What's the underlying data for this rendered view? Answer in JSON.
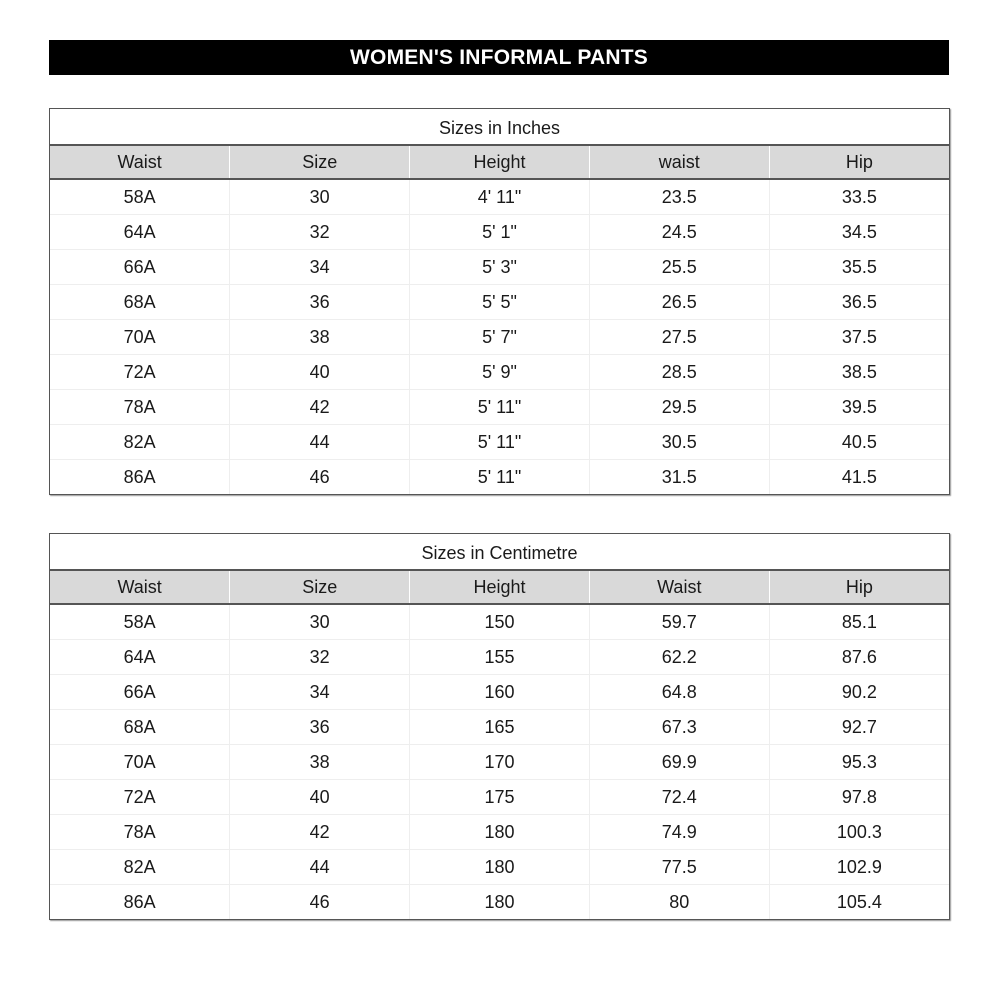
{
  "title": "WOMEN'S INFORMAL PANTS",
  "tables": [
    {
      "caption": "Sizes in Inches",
      "headers": [
        "Waist",
        "Size",
        "Height",
        "waist",
        "Hip"
      ],
      "rows": [
        [
          "58A",
          "30",
          "4' 11\"",
          "23.5",
          "33.5"
        ],
        [
          "64A",
          "32",
          "5' 1\"",
          "24.5",
          "34.5"
        ],
        [
          "66A",
          "34",
          "5' 3\"",
          "25.5",
          "35.5"
        ],
        [
          "68A",
          "36",
          "5' 5\"",
          "26.5",
          "36.5"
        ],
        [
          "70A",
          "38",
          "5' 7\"",
          "27.5",
          "37.5"
        ],
        [
          "72A",
          "40",
          "5' 9\"",
          "28.5",
          "38.5"
        ],
        [
          "78A",
          "42",
          "5' 11\"",
          "29.5",
          "39.5"
        ],
        [
          "82A",
          "44",
          "5' 11\"",
          "30.5",
          "40.5"
        ],
        [
          "86A",
          "46",
          "5' 11\"",
          "31.5",
          "41.5"
        ]
      ]
    },
    {
      "caption": "Sizes in Centimetre",
      "headers": [
        "Waist",
        "Size",
        "Height",
        "Waist",
        "Hip"
      ],
      "rows": [
        [
          "58A",
          "30",
          "150",
          "59.7",
          "85.1"
        ],
        [
          "64A",
          "32",
          "155",
          "62.2",
          "87.6"
        ],
        [
          "66A",
          "34",
          "160",
          "64.8",
          "90.2"
        ],
        [
          "68A",
          "36",
          "165",
          "67.3",
          "92.7"
        ],
        [
          "70A",
          "38",
          "170",
          "69.9",
          "95.3"
        ],
        [
          "72A",
          "40",
          "175",
          "72.4",
          "97.8"
        ],
        [
          "78A",
          "42",
          "180",
          "74.9",
          "100.3"
        ],
        [
          "82A",
          "44",
          "180",
          "77.5",
          "102.9"
        ],
        [
          "86A",
          "46",
          "180",
          "80",
          "105.4"
        ]
      ]
    }
  ]
}
